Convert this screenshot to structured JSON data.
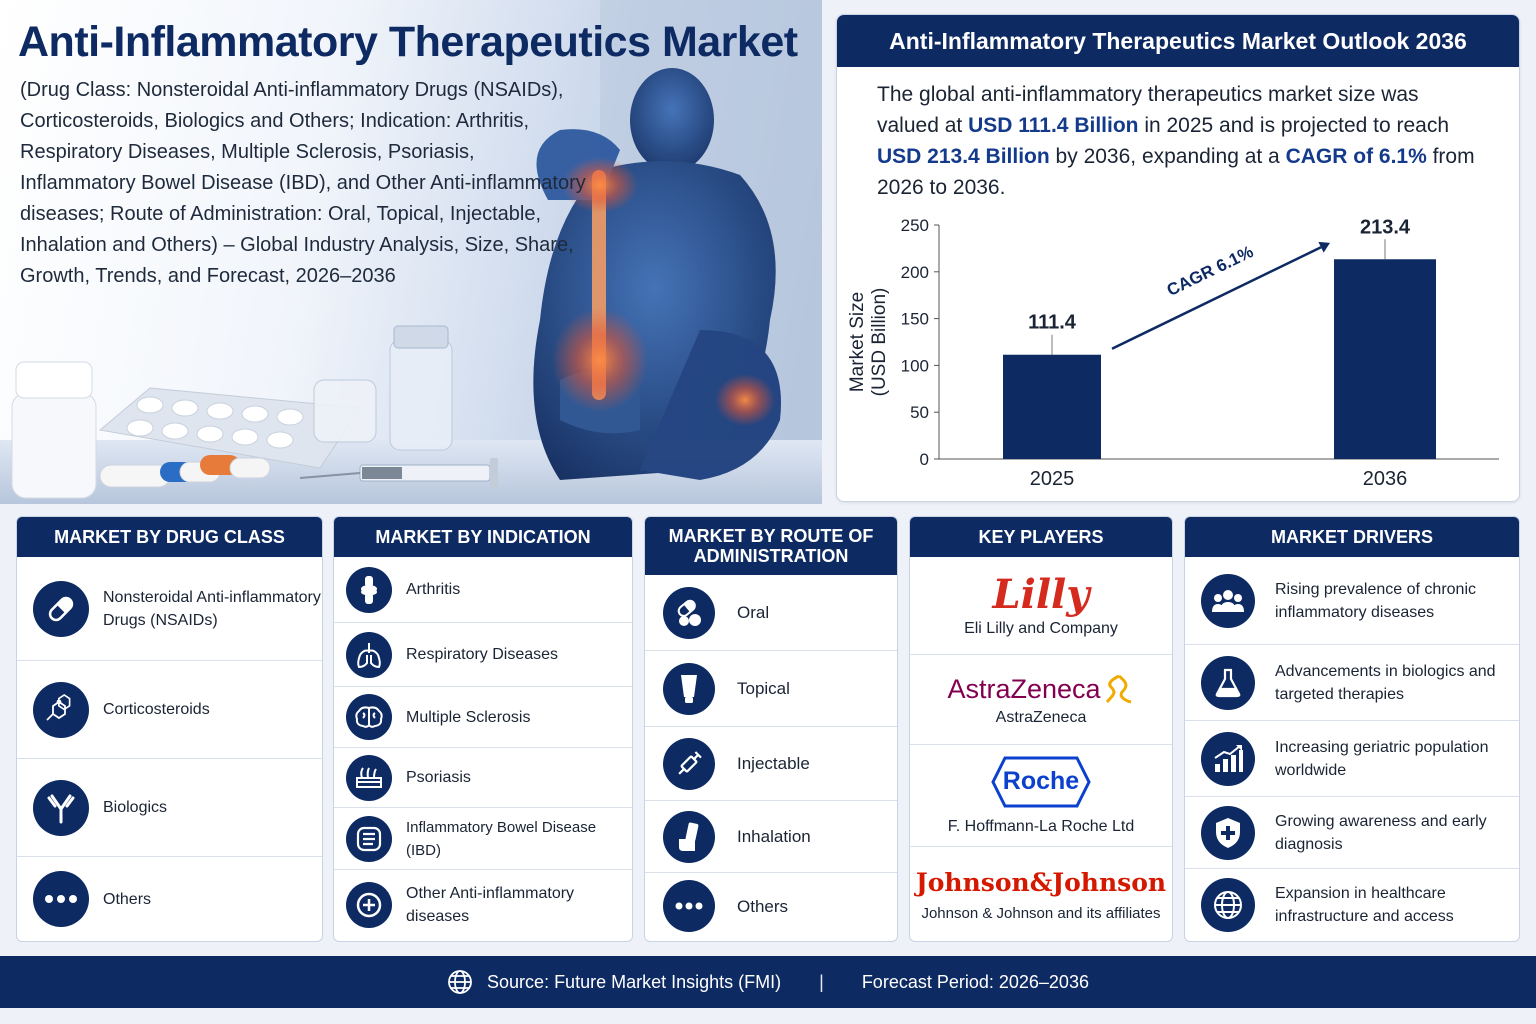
{
  "hero": {
    "title": "Anti-Inflammatory Therapeutics Market",
    "subtitle": "(Drug Class: Nonsteroidal Anti-inflammatory Drugs (NSAIDs), Corticosteroids, Biologics and Others; Indication: Arthritis, Respiratory Diseases, Multiple Sclerosis, Psoriasis, Inflammatory Bowel Disease (IBD), and Other Anti-inflammatory diseases; Route of Administration: Oral, Topical, Injectable, Inhalation and Others) – Global Industry Analysis, Size, Share, Growth, Trends, and Forecast, 2026–2036"
  },
  "outlook": {
    "title": "Anti-Inflammatory Therapeutics Market Outlook 2036",
    "text_1": "The global anti-inflammatory therapeutics market size was valued at ",
    "value_2025": "USD 111.4 Billion",
    "text_2": " in 2025 and is projected to reach ",
    "value_2036": "USD 213.4 Billion",
    "text_3": " by 2036, expanding at a ",
    "cagr": "CAGR of 6.1%",
    "text_4": " from 2026 to 2036."
  },
  "chart_data": {
    "type": "bar",
    "categories": [
      "2025",
      "2036"
    ],
    "values": [
      111.4,
      213.4
    ],
    "value_labels": [
      "111.4",
      "213.4"
    ],
    "ylabel": "Market Size (USD Billion)",
    "ylim": [
      0,
      250
    ],
    "yticks": [
      0,
      50,
      100,
      150,
      200,
      250
    ],
    "annotation": "CAGR 6.1%",
    "bar_color": "#0d2a63",
    "grid": false,
    "legend": "none"
  },
  "drug_class": {
    "title": "MARKET BY DRUG CLASS",
    "items": [
      {
        "label": "Nonsteroidal Anti-inflammatory Drugs (NSAIDs)",
        "icon": "capsule-icon"
      },
      {
        "label": "Corticosteroids",
        "icon": "molecule-icon"
      },
      {
        "label": "Biologics",
        "icon": "antibody-icon"
      },
      {
        "label": "Others",
        "icon": "dots-icon"
      }
    ]
  },
  "indication": {
    "title": "MARKET BY INDICATION",
    "items": [
      {
        "label": "Arthritis",
        "icon": "joint-icon"
      },
      {
        "label": "Respiratory Diseases",
        "icon": "lungs-icon"
      },
      {
        "label": "Multiple Sclerosis",
        "icon": "brain-icon"
      },
      {
        "label": "Psoriasis",
        "icon": "skin-icon"
      },
      {
        "label": "Inflammatory Bowel Disease (IBD)",
        "icon": "intestine-icon"
      },
      {
        "label": "Other Anti-inflammatory diseases",
        "icon": "plus-circle-icon"
      }
    ]
  },
  "route": {
    "title": "MARKET BY ROUTE OF ADMINISTRATION",
    "items": [
      {
        "label": "Oral",
        "icon": "pills-icon"
      },
      {
        "label": "Topical",
        "icon": "tube-icon"
      },
      {
        "label": "Injectable",
        "icon": "syringe-icon"
      },
      {
        "label": "Inhalation",
        "icon": "inhaler-icon"
      },
      {
        "label": "Others",
        "icon": "dots-icon"
      }
    ]
  },
  "key_players": {
    "title": "KEY PLAYERS",
    "items": [
      {
        "logo": "Lilly",
        "name": "Eli Lilly and Company",
        "logo_color": "#d52b1e"
      },
      {
        "logo": "AstraZeneca",
        "name": "AstraZeneca",
        "logo_color": "#830051"
      },
      {
        "logo": "Roche",
        "name": "F. Hoffmann-La Roche Ltd",
        "logo_color": "#0b41cd"
      },
      {
        "logo": "Johnson&Johnson",
        "name": "Johnson & Johnson and its affiliates",
        "logo_color": "#d51900"
      }
    ]
  },
  "drivers": {
    "title": "MARKET DRIVERS",
    "items": [
      {
        "label": "Rising prevalence of chronic inflammatory diseases",
        "icon": "people-icon"
      },
      {
        "label": "Advancements in biologics and targeted therapies",
        "icon": "flask-icon"
      },
      {
        "label": "Increasing geriatric population worldwide",
        "icon": "growth-chart-icon"
      },
      {
        "label": "Growing awareness and early diagnosis",
        "icon": "shield-plus-icon"
      },
      {
        "label": "Expansion in healthcare infrastructure and access",
        "icon": "globe-icon"
      }
    ]
  },
  "footer": {
    "source": "Source: Future Market Insights (FMI)",
    "divider": "|",
    "forecast": "Forecast Period: 2026–2036"
  }
}
